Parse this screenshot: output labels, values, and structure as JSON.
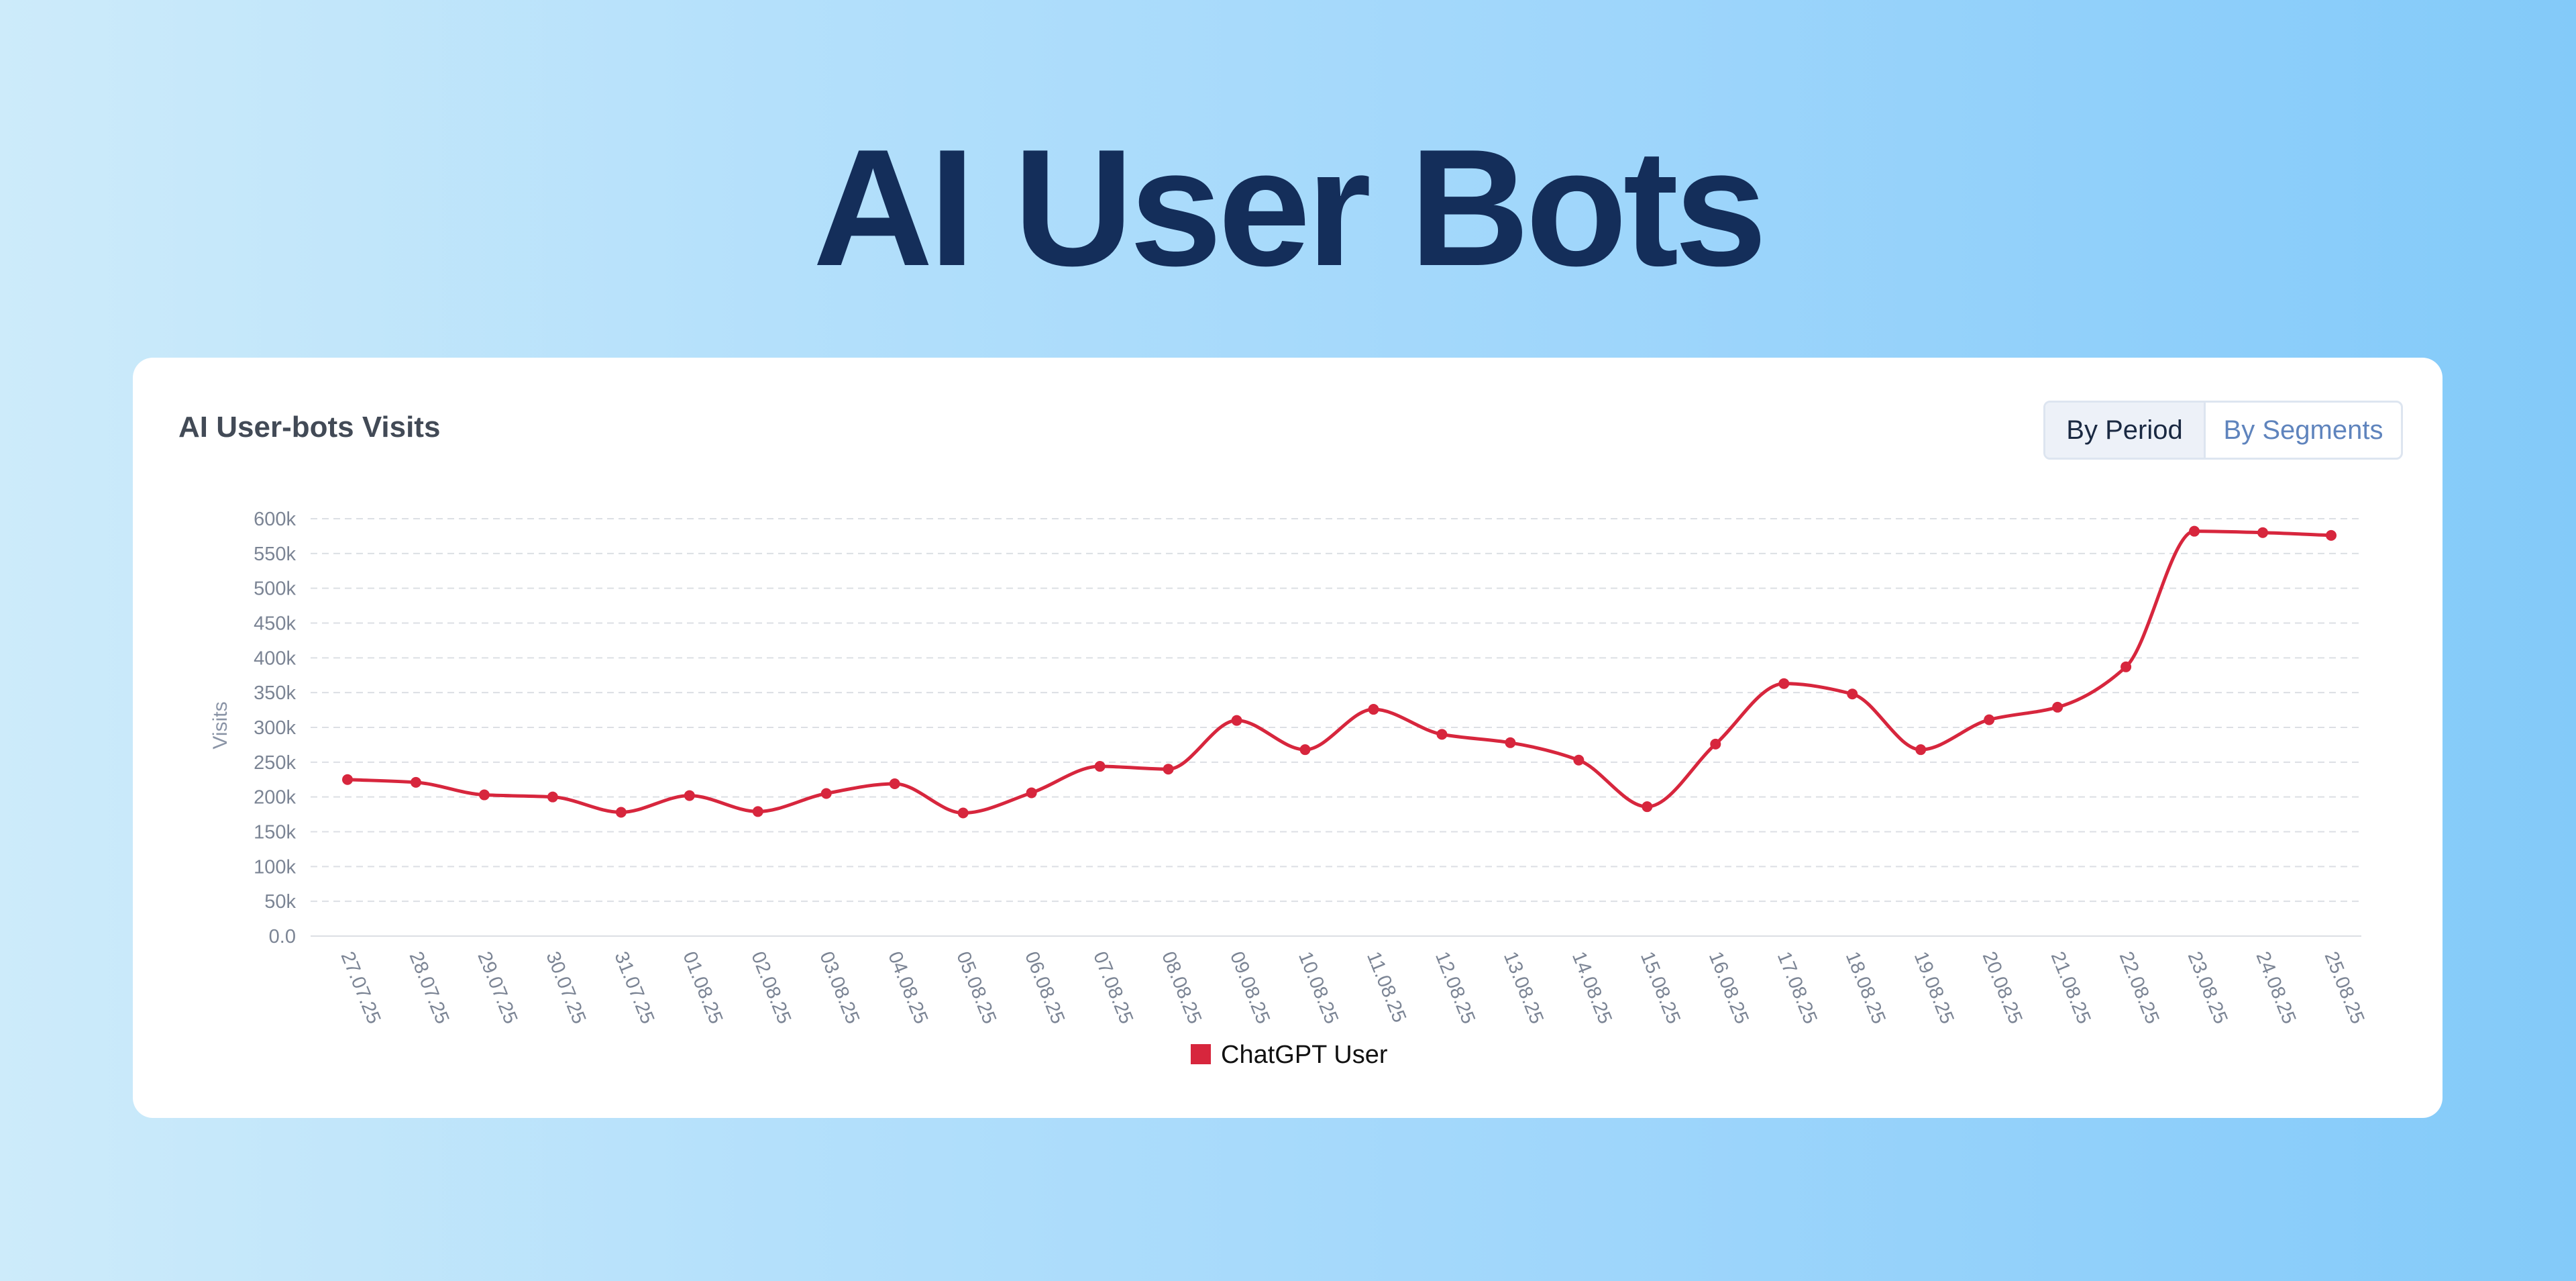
{
  "page": {
    "title": "AI User Bots"
  },
  "card": {
    "title": "AI User-bots Visits",
    "toggle": {
      "by_period": "By Period",
      "by_segments": "By Segments",
      "selected": "By Period"
    }
  },
  "chart_data": {
    "type": "line",
    "title": "AI User-bots Visits",
    "xlabel": "",
    "ylabel": "Visits",
    "ylim": [
      0,
      600000
    ],
    "yticks": [
      0,
      50000,
      100000,
      150000,
      200000,
      250000,
      300000,
      350000,
      400000,
      450000,
      500000,
      550000,
      600000
    ],
    "ytick_labels": [
      "0.0",
      "50k",
      "100k",
      "150k",
      "200k",
      "250k",
      "300k",
      "350k",
      "400k",
      "450k",
      "500k",
      "550k",
      "600k"
    ],
    "grid": true,
    "legend_position": "bottom",
    "categories": [
      "27.07.25",
      "28.07.25",
      "29.07.25",
      "30.07.25",
      "31.07.25",
      "01.08.25",
      "02.08.25",
      "03.08.25",
      "04.08.25",
      "05.08.25",
      "06.08.25",
      "07.08.25",
      "08.08.25",
      "09.08.25",
      "10.08.25",
      "11.08.25",
      "12.08.25",
      "13.08.25",
      "14.08.25",
      "15.08.25",
      "16.08.25",
      "17.08.25",
      "18.08.25",
      "19.08.25",
      "20.08.25",
      "21.08.25",
      "22.08.25",
      "23.08.25",
      "24.08.25",
      "25.08.25"
    ],
    "series": [
      {
        "name": "ChatGPT User",
        "color": "#d7263d",
        "values": [
          225000,
          221000,
          203000,
          200000,
          178000,
          202000,
          179000,
          205000,
          219000,
          177000,
          206000,
          244000,
          240000,
          310000,
          268000,
          326000,
          290000,
          278000,
          253000,
          186000,
          276000,
          363000,
          348000,
          268000,
          311000,
          329000,
          387000,
          582000,
          580000,
          576000
        ]
      }
    ]
  }
}
